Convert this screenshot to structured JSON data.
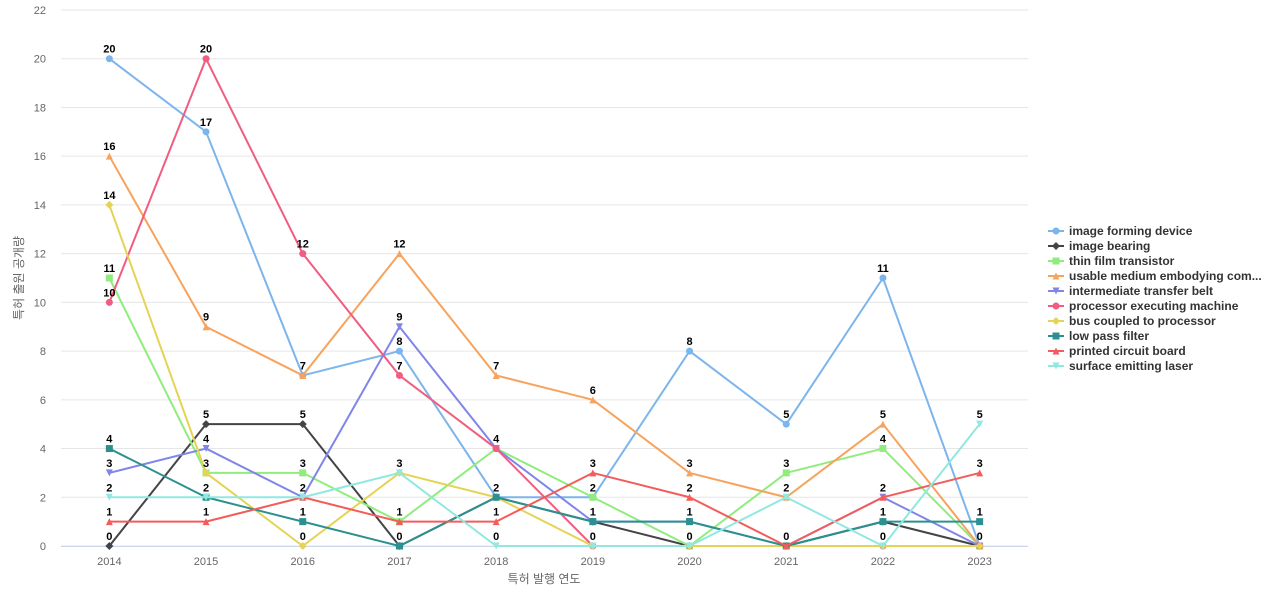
{
  "chart_data": {
    "type": "line",
    "title": "",
    "xlabel": "특허 발행 연도",
    "ylabel": "특허 출원 공개량",
    "ylim": [
      0,
      22
    ],
    "y_ticks": [
      0,
      2,
      4,
      6,
      8,
      10,
      12,
      14,
      16,
      18,
      20,
      22
    ],
    "grid": true,
    "legend_position": "right",
    "categories": [
      "2014",
      "2015",
      "2016",
      "2017",
      "2018",
      "2019",
      "2020",
      "2021",
      "2022",
      "2023"
    ],
    "series": [
      {
        "name": "image forming device",
        "color": "#7cb5ec",
        "marker": "circle",
        "values": [
          20,
          17,
          7,
          8,
          2,
          2,
          8,
          5,
          11,
          0
        ]
      },
      {
        "name": "image bearing",
        "color": "#434348",
        "marker": "diamond",
        "values": [
          0,
          5,
          5,
          0,
          2,
          1,
          0,
          0,
          1,
          0
        ]
      },
      {
        "name": "thin film transistor",
        "color": "#90ed7d",
        "marker": "square",
        "values": [
          11,
          3,
          3,
          1,
          4,
          2,
          0,
          3,
          4,
          0
        ]
      },
      {
        "name": "usable medium embodying com...",
        "color": "#f7a35c",
        "marker": "triangle",
        "values": [
          16,
          9,
          7,
          12,
          7,
          6,
          3,
          2,
          5,
          0
        ]
      },
      {
        "name": "intermediate transfer belt",
        "color": "#8085e9",
        "marker": "triangle-down",
        "values": [
          3,
          4,
          2,
          9,
          4,
          1,
          1,
          0,
          2,
          0
        ]
      },
      {
        "name": "processor executing machine",
        "color": "#f15c80",
        "marker": "circle",
        "values": [
          10,
          20,
          12,
          7,
          4,
          0,
          0,
          0,
          0,
          0
        ]
      },
      {
        "name": "bus coupled to processor",
        "color": "#e4d354",
        "marker": "diamond",
        "values": [
          14,
          3,
          0,
          3,
          2,
          0,
          0,
          0,
          0,
          0
        ]
      },
      {
        "name": "low pass filter",
        "color": "#2b908f",
        "marker": "square",
        "values": [
          4,
          2,
          1,
          0,
          2,
          1,
          1,
          0,
          1,
          1
        ]
      },
      {
        "name": "printed circuit board",
        "color": "#f45b5b",
        "marker": "triangle",
        "values": [
          1,
          1,
          2,
          1,
          1,
          3,
          2,
          0,
          2,
          3
        ]
      },
      {
        "name": "surface emitting laser",
        "color": "#91e8e1",
        "marker": "triangle-down",
        "values": [
          2,
          2,
          2,
          3,
          0,
          0,
          0,
          2,
          0,
          5
        ]
      }
    ],
    "data_labels": [
      {
        "series": 0,
        "point": 0,
        "text": "20"
      },
      {
        "series": 5,
        "point": 1,
        "text": "20"
      },
      {
        "series": 0,
        "point": 1,
        "text": "17"
      },
      {
        "series": 3,
        "point": 0,
        "text": "16"
      },
      {
        "series": 6,
        "point": 0,
        "text": "14"
      },
      {
        "series": 5,
        "point": 2,
        "text": "12"
      },
      {
        "series": 3,
        "point": 3,
        "text": "12"
      },
      {
        "series": 2,
        "point": 0,
        "text": "11"
      },
      {
        "series": 0,
        "point": 8,
        "text": "11"
      },
      {
        "series": 5,
        "point": 0,
        "text": "10"
      },
      {
        "series": 3,
        "point": 1,
        "text": "9"
      },
      {
        "series": 4,
        "point": 3,
        "text": "9"
      },
      {
        "series": 0,
        "point": 3,
        "text": "8"
      },
      {
        "series": 0,
        "point": 6,
        "text": "8"
      },
      {
        "series": 0,
        "point": 2,
        "text": "7"
      },
      {
        "series": 5,
        "point": 3,
        "text": "7"
      },
      {
        "series": 3,
        "point": 4,
        "text": "7"
      },
      {
        "series": 3,
        "point": 5,
        "text": "6"
      },
      {
        "series": 1,
        "point": 1,
        "text": "5"
      },
      {
        "series": 1,
        "point": 2,
        "text": "5"
      },
      {
        "series": 0,
        "point": 7,
        "text": "5"
      },
      {
        "series": 3,
        "point": 8,
        "text": "5"
      },
      {
        "series": 9,
        "point": 9,
        "text": "5"
      },
      {
        "series": 7,
        "point": 0,
        "text": "4"
      },
      {
        "series": 4,
        "point": 1,
        "text": "4"
      },
      {
        "series": 2,
        "point": 4,
        "text": "4"
      },
      {
        "series": 2,
        "point": 8,
        "text": "4"
      },
      {
        "series": 4,
        "point": 0,
        "text": "3"
      },
      {
        "series": 6,
        "point": 1,
        "text": "3"
      },
      {
        "series": 2,
        "point": 2,
        "text": "3"
      },
      {
        "series": 6,
        "point": 3,
        "text": "3"
      },
      {
        "series": 8,
        "point": 5,
        "text": "3"
      },
      {
        "series": 3,
        "point": 6,
        "text": "3"
      },
      {
        "series": 2,
        "point": 7,
        "text": "3"
      },
      {
        "series": 8,
        "point": 9,
        "text": "3"
      },
      {
        "series": 9,
        "point": 0,
        "text": "2"
      },
      {
        "series": 7,
        "point": 1,
        "text": "2"
      },
      {
        "series": 4,
        "point": 2,
        "text": "2"
      },
      {
        "series": 1,
        "point": 4,
        "text": "2"
      },
      {
        "series": 0,
        "point": 5,
        "text": "2"
      },
      {
        "series": 8,
        "point": 6,
        "text": "2"
      },
      {
        "series": 9,
        "point": 7,
        "text": "2"
      },
      {
        "series": 8,
        "point": 8,
        "text": "2"
      },
      {
        "series": 8,
        "point": 0,
        "text": "1"
      },
      {
        "series": 8,
        "point": 1,
        "text": "1"
      },
      {
        "series": 7,
        "point": 2,
        "text": "1"
      },
      {
        "series": 8,
        "point": 3,
        "text": "1"
      },
      {
        "series": 8,
        "point": 4,
        "text": "1"
      },
      {
        "series": 4,
        "point": 5,
        "text": "1"
      },
      {
        "series": 7,
        "point": 6,
        "text": "1"
      },
      {
        "series": 7,
        "point": 8,
        "text": "1"
      },
      {
        "series": 7,
        "point": 9,
        "text": "1"
      },
      {
        "series": 1,
        "point": 0,
        "text": "0"
      },
      {
        "series": 6,
        "point": 2,
        "text": "0"
      },
      {
        "series": 1,
        "point": 3,
        "text": "0"
      },
      {
        "series": 9,
        "point": 4,
        "text": "0"
      },
      {
        "series": 5,
        "point": 5,
        "text": "0"
      },
      {
        "series": 2,
        "point": 6,
        "text": "0"
      },
      {
        "series": 8,
        "point": 7,
        "text": "0"
      },
      {
        "series": 9,
        "point": 8,
        "text": "0"
      },
      {
        "series": 0,
        "point": 9,
        "text": "0"
      }
    ]
  }
}
